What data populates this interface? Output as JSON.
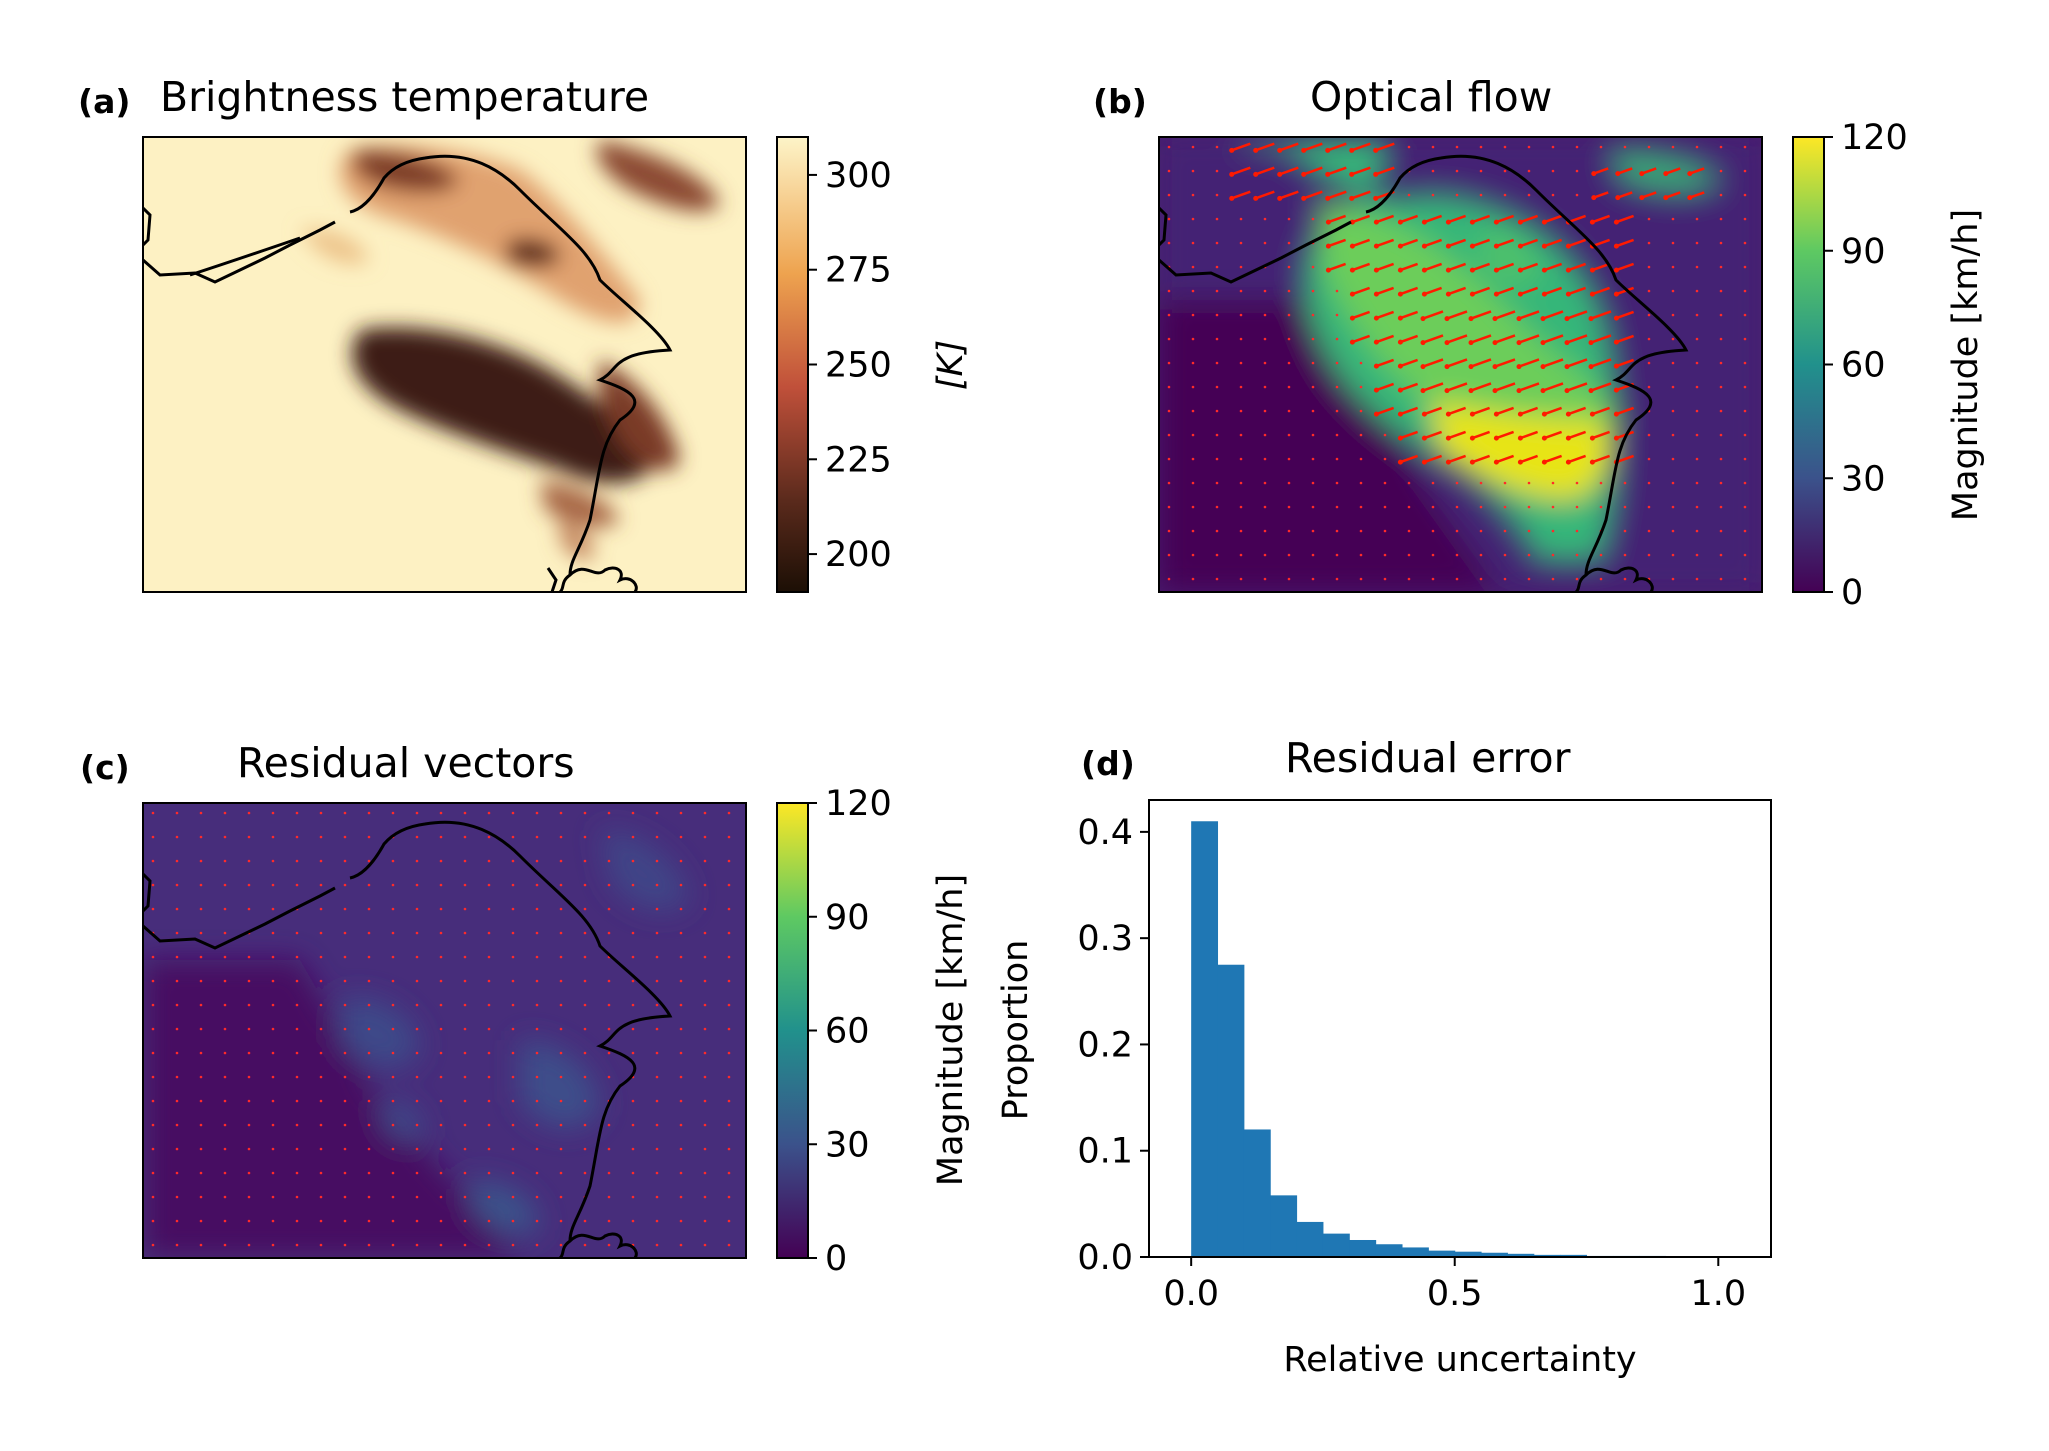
{
  "chart_data": [
    {
      "panel": "(a)",
      "type": "heatmap",
      "title": "Brightness temperature",
      "colorbar": {
        "label": "[K]",
        "ticks": [
          200,
          225,
          250,
          275,
          300
        ],
        "range": [
          190,
          310
        ],
        "colormap": "brown-to-pale-yellow"
      },
      "colors": {
        "low": "#1c0f05",
        "mid": "#c0503a",
        "high": "#fdf4c8"
      }
    },
    {
      "panel": "(b)",
      "type": "heatmap",
      "title": "Optical flow",
      "colorbar": {
        "label": "Magnitude [km/h]",
        "ticks": [
          0,
          30,
          60,
          90,
          120
        ],
        "range": [
          0,
          120
        ],
        "colormap": "viridis"
      },
      "overlay": "red motion vectors"
    },
    {
      "panel": "(c)",
      "type": "heatmap",
      "title": "Residual vectors",
      "colorbar": {
        "label": "Magnitude [km/h]",
        "ticks": [
          0,
          30,
          60,
          90,
          120
        ],
        "range": [
          0,
          120
        ],
        "colormap": "viridis"
      },
      "overlay": "red residual vectors"
    },
    {
      "panel": "(d)",
      "type": "bar",
      "title": "Residual error",
      "xlabel": "Relative uncertainty",
      "ylabel": "Proportion",
      "xlim": [
        -0.08,
        1.1
      ],
      "ylim": [
        0,
        0.43
      ],
      "xticks": [
        "0.0",
        "0.5",
        "1.0"
      ],
      "yticks": [
        "0.0",
        "0.1",
        "0.2",
        "0.3",
        "0.4"
      ],
      "bin_width": 0.05,
      "bin_start": 0.0,
      "values": [
        0.41,
        0.275,
        0.12,
        0.058,
        0.033,
        0.022,
        0.016,
        0.012,
        0.009,
        0.006,
        0.005,
        0.004,
        0.003,
        0.002,
        0.002,
        0.001,
        0.001,
        0.001,
        0.0005,
        0.0004,
        0.0003
      ],
      "color": "#1f77b4"
    }
  ]
}
